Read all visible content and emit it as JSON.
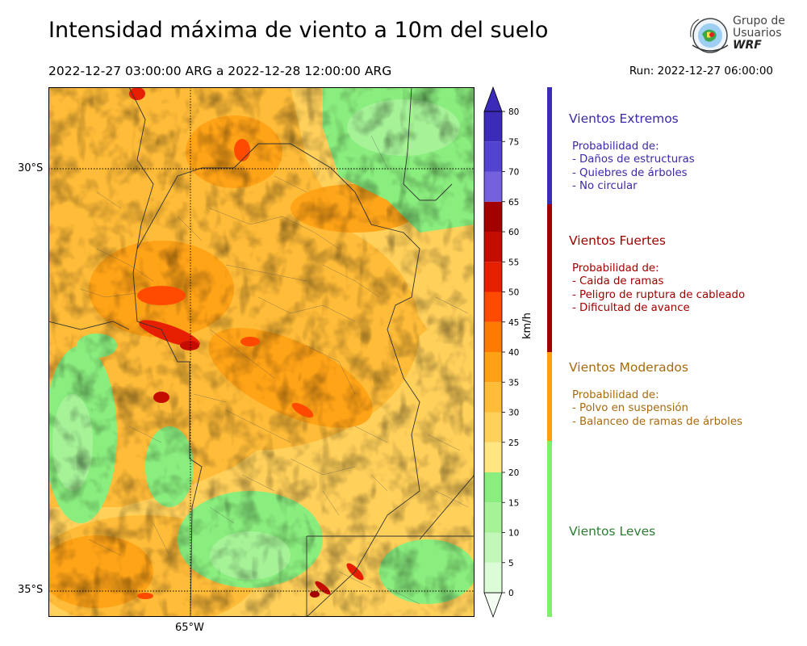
{
  "header": {
    "title": "Intensidad máxima de viento a 10m del suelo",
    "period": "2022-12-27 03:00:00 ARG  a  2022-12-28 12:00:00 ARG",
    "run": "Run: 2022-12-27 06:00:00"
  },
  "logo": {
    "line1": "Grupo de",
    "line2": "Usuarios",
    "line3": "WRF"
  },
  "map": {
    "lat_labels": [
      "30°S",
      "35°S"
    ],
    "lon_labels": [
      "65°W"
    ]
  },
  "colorbar": {
    "unit": "km/h",
    "ticks": [
      "0",
      "5",
      "10",
      "15",
      "20",
      "25",
      "30",
      "35",
      "40",
      "45",
      "50",
      "55",
      "60",
      "65",
      "70",
      "75",
      "80"
    ],
    "colors": [
      "#f2fef0",
      "#dcfbd7",
      "#c3f7ba",
      "#a5f297",
      "#8aee7e",
      "#ffe680",
      "#ffd05a",
      "#ffbc38",
      "#ffa114",
      "#ff7b00",
      "#ff4a00",
      "#e51f00",
      "#c40d00",
      "#a30000",
      "#7560de",
      "#5243d0",
      "#3b2bb8"
    ]
  },
  "categories": [
    {
      "title": "Vientos Extremos",
      "color": "#3a29a8",
      "lines": [
        "Probabilidad de:",
        "- Daños de estructuras",
        "- Quiebres de árboles",
        "- No circular"
      ]
    },
    {
      "title": "Vientos Fuertes",
      "color": "#a00000",
      "lines": [
        "Probabilidad de:",
        "- Caida de ramas",
        "- Peligro de ruptura de cableado",
        "- Dificultad de avance"
      ]
    },
    {
      "title": "Vientos Moderados",
      "color": "#a86a0c",
      "lines": [
        "Probabilidad de:",
        "- Polvo en suspensión",
        "- Balanceo de ramas de árboles"
      ]
    },
    {
      "title": "Vientos Leves",
      "color": "#2e7d32",
      "lines": []
    }
  ],
  "category_bar_colors": [
    "#3a2db4",
    "#a00000",
    "#ff9f10",
    "#7ef06c"
  ]
}
